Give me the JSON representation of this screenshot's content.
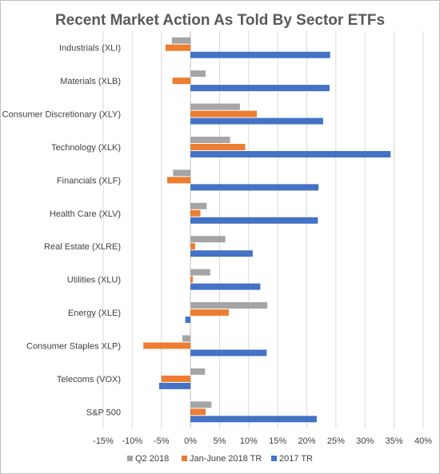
{
  "chart_data": {
    "type": "bar",
    "orientation": "horizontal",
    "title": "Recent Market Action As Told By Sector ETFs",
    "xlabel": "",
    "ylabel": "",
    "categories": [
      "Industrials (XLI)",
      "Materials (XLB)",
      "Consumer Discretionary (XLY)",
      "Technology (XLK)",
      "Financials (XLF)",
      "Health Care (XLV)",
      "Real Estate (XLRE)",
      "Utilities (XLU)",
      "Energy (XLE)",
      "Consumer Staples XLP)",
      "Telecoms (VOX)",
      "S&P 500"
    ],
    "series": [
      {
        "name": "Q2 2018",
        "color": "#a5a5a5",
        "values": [
          -3.2,
          2.6,
          8.5,
          6.8,
          -3.0,
          2.8,
          6.0,
          3.4,
          13.2,
          -1.4,
          2.5,
          3.6
        ]
      },
      {
        "name": "Jan-June 2018 TR",
        "color": "#ed7d31",
        "values": [
          -4.3,
          -3.1,
          11.4,
          9.4,
          -4.0,
          1.7,
          0.8,
          0.4,
          6.6,
          -8.1,
          -5.0,
          2.6
        ]
      },
      {
        "name": "2017 TR",
        "color": "#4472c4",
        "values": [
          24.0,
          23.9,
          22.8,
          34.4,
          22.0,
          21.9,
          10.7,
          12.0,
          -0.9,
          13.1,
          -5.4,
          21.7
        ]
      }
    ],
    "xlim": [
      -15,
      40
    ],
    "xticks": [
      "-15%",
      "-10%",
      "-5%",
      "0%",
      "5%",
      "10%",
      "15%",
      "20%",
      "25%",
      "30%",
      "35%",
      "40%"
    ],
    "grid": true,
    "legend_position": "bottom"
  }
}
